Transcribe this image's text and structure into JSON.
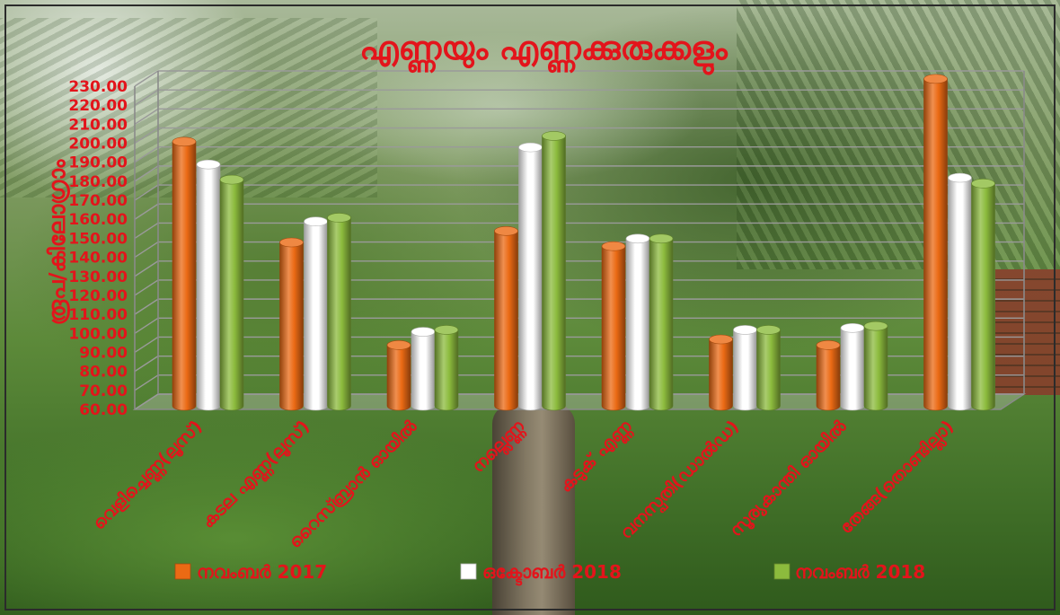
{
  "chart_data": {
    "type": "bar",
    "style": "3d-cylinder",
    "title": "എണ്ണയും എണ്ണക്കുരുക്കളും",
    "xlabel": "",
    "ylabel": "രൂപ/കിലോഗ്രാം",
    "ylim": [
      60,
      230
    ],
    "yticks": [
      "60.00",
      "70.00",
      "80.00",
      "90.00",
      "100.00",
      "110.00",
      "120.00",
      "130.00",
      "140.00",
      "150.00",
      "160.00",
      "170.00",
      "180.00",
      "190.00",
      "200.00",
      "210.00",
      "220.00",
      "230.00"
    ],
    "categories": [
      "വെളിച്ചെണ്ണ(ലൂസ്)",
      "കടല എണ്ണ(ലൂസ്)",
      "റൈസ്ബ്രാൻ ഓയിൽ",
      "നല്ലെണ്ണ",
      "കടുക് എണ്ണ",
      "വനസ്പതി(ഡാൽഡ)",
      "സൂര്യകാന്തി ഓയിൽ",
      "തേങ്ങ(തൊണ്ടില്ലാ)"
    ],
    "series": [
      {
        "name": "നവംബർ 2017",
        "color": "#eb6a14",
        "values": [
          198,
          145,
          91,
          151,
          143,
          94,
          91,
          231
        ]
      },
      {
        "name": "ഒക്ടോബർ 2018",
        "color": "#ffffff",
        "values": [
          186,
          156,
          98,
          195,
          147,
          99,
          100,
          179
        ]
      },
      {
        "name": "നവംബർ 2018",
        "color": "#8cbb3d",
        "values": [
          178,
          158,
          99,
          201,
          147,
          99,
          101,
          176
        ]
      }
    ],
    "grid": true,
    "legend": "bottom"
  },
  "colors": {
    "text": "#e3141b",
    "gridline": "#9a9a9a",
    "floor": "#c9c9c9",
    "frame": "#2b2b2b"
  }
}
